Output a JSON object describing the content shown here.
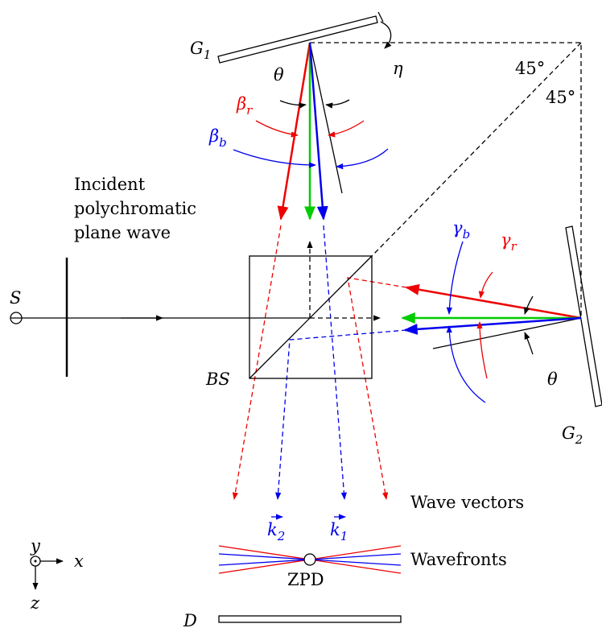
{
  "labels": {
    "g1": {
      "base": "G",
      "sub": "1"
    },
    "g2": {
      "base": "G",
      "sub": "2"
    },
    "eta": "η",
    "theta_top": "θ",
    "theta_right": "θ",
    "beta_r": {
      "base": "β",
      "sub": "r"
    },
    "beta_b": {
      "base": "β",
      "sub": "b"
    },
    "gamma_b": {
      "base": "γ",
      "sub": "b"
    },
    "gamma_r": {
      "base": "γ",
      "sub": "r"
    },
    "angle_top": "45°",
    "angle_right": "45°",
    "incident": [
      "Incident",
      "polychromatic",
      "plane wave"
    ],
    "source": "S",
    "beamsplitter": "BS",
    "wave_vectors": "Wave vectors",
    "k2": {
      "base": "k",
      "sub": "2"
    },
    "k1": {
      "base": "k",
      "sub": "1"
    },
    "wavefronts": "Wavefronts",
    "zpd": "ZPD",
    "detector": "D",
    "axis_y": "y",
    "axis_x": "x",
    "axis_z": "z"
  }
}
